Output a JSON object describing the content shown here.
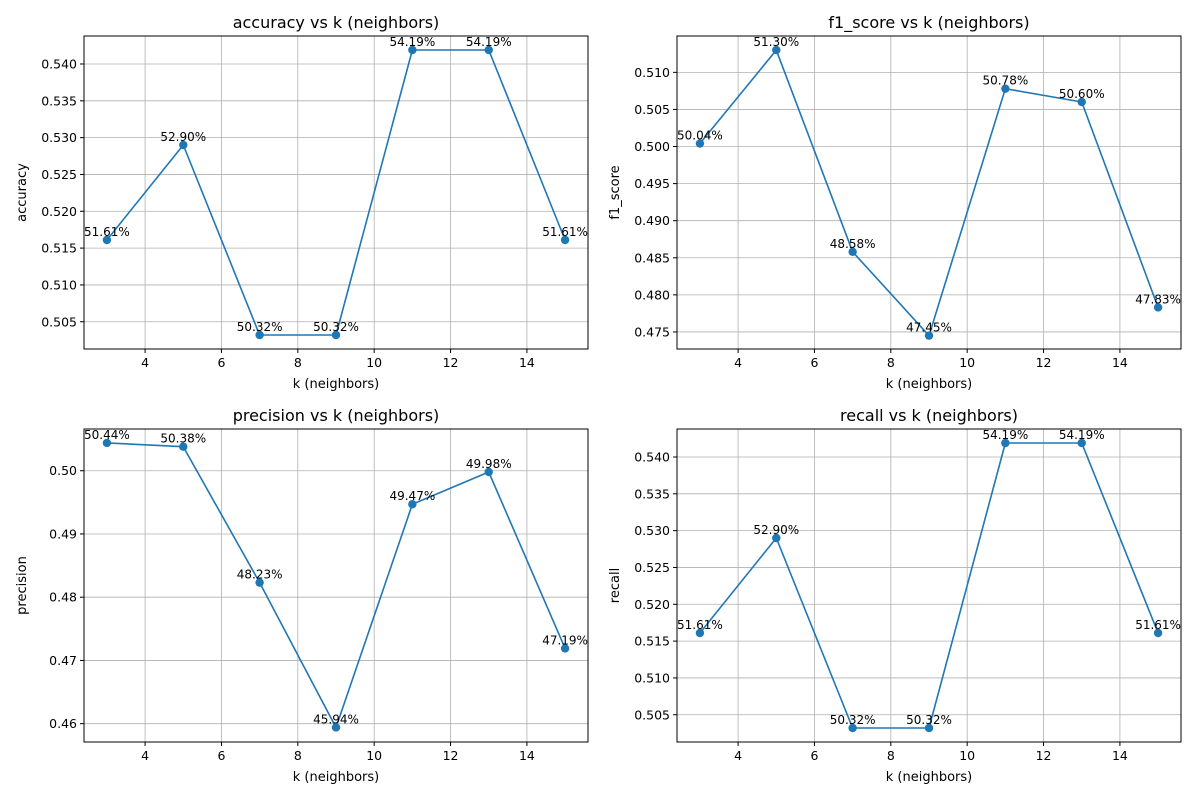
{
  "chart_data": [
    {
      "type": "line",
      "title": "accuracy vs k (neighbors)",
      "xlabel": "k (neighbors)",
      "ylabel": "accuracy",
      "x": [
        3,
        5,
        7,
        9,
        11,
        13,
        15
      ],
      "series": [
        {
          "values": [
            0.5161,
            0.529,
            0.5032,
            0.5032,
            0.5419,
            0.5419,
            0.5161
          ],
          "color": "#1f77b4"
        }
      ],
      "point_labels": [
        "51.61%",
        "52.90%",
        "50.32%",
        "50.32%",
        "54.19%",
        "54.19%",
        "51.61%"
      ],
      "xlim": [
        2.4,
        15.6
      ],
      "ylim": [
        0.5013,
        0.5438
      ],
      "xticks": [
        4,
        6,
        8,
        10,
        12,
        14
      ],
      "xtick_labels": [
        "4",
        "6",
        "8",
        "10",
        "12",
        "14"
      ],
      "yticks": [
        0.505,
        0.51,
        0.515,
        0.52,
        0.525,
        0.53,
        0.535,
        0.54
      ],
      "ytick_labels": [
        "0.505",
        "0.510",
        "0.515",
        "0.520",
        "0.525",
        "0.530",
        "0.535",
        "0.540"
      ],
      "grid": true
    },
    {
      "type": "line",
      "title": "f1_score vs k (neighbors)",
      "xlabel": "k (neighbors)",
      "ylabel": "f1_score",
      "x": [
        3,
        5,
        7,
        9,
        11,
        13,
        15
      ],
      "series": [
        {
          "values": [
            0.5004,
            0.513,
            0.4858,
            0.4745,
            0.5078,
            0.506,
            0.4783
          ],
          "color": "#1f77b4"
        }
      ],
      "point_labels": [
        "50.04%",
        "51.30%",
        "48.58%",
        "47.45%",
        "50.78%",
        "50.60%",
        "47.83%"
      ],
      "xlim": [
        2.4,
        15.6
      ],
      "ylim": [
        0.4727,
        0.5149
      ],
      "xticks": [
        4,
        6,
        8,
        10,
        12,
        14
      ],
      "xtick_labels": [
        "4",
        "6",
        "8",
        "10",
        "12",
        "14"
      ],
      "yticks": [
        0.475,
        0.48,
        0.485,
        0.49,
        0.495,
        0.5,
        0.505,
        0.51
      ],
      "ytick_labels": [
        "0.475",
        "0.480",
        "0.485",
        "0.490",
        "0.495",
        "0.500",
        "0.505",
        "0.510"
      ],
      "grid": true
    },
    {
      "type": "line",
      "title": "precision vs k (neighbors)",
      "xlabel": "k (neighbors)",
      "ylabel": "precision",
      "x": [
        3,
        5,
        7,
        9,
        11,
        13,
        15
      ],
      "series": [
        {
          "values": [
            0.5044,
            0.5038,
            0.4823,
            0.4594,
            0.4947,
            0.4998,
            0.4719
          ],
          "color": "#1f77b4"
        }
      ],
      "point_labels": [
        "50.44%",
        "50.38%",
        "48.23%",
        "45.94%",
        "49.47%",
        "49.98%",
        "47.19%"
      ],
      "xlim": [
        2.4,
        15.6
      ],
      "ylim": [
        0.4571,
        0.5066
      ],
      "xticks": [
        4,
        6,
        8,
        10,
        12,
        14
      ],
      "xtick_labels": [
        "4",
        "6",
        "8",
        "10",
        "12",
        "14"
      ],
      "yticks": [
        0.46,
        0.47,
        0.48,
        0.49,
        0.5
      ],
      "ytick_labels": [
        "0.46",
        "0.47",
        "0.48",
        "0.49",
        "0.50"
      ],
      "grid": true
    },
    {
      "type": "line",
      "title": "recall vs k (neighbors)",
      "xlabel": "k (neighbors)",
      "ylabel": "recall",
      "x": [
        3,
        5,
        7,
        9,
        11,
        13,
        15
      ],
      "series": [
        {
          "values": [
            0.5161,
            0.529,
            0.5032,
            0.5032,
            0.5419,
            0.5419,
            0.5161
          ],
          "color": "#1f77b4"
        }
      ],
      "point_labels": [
        "51.61%",
        "52.90%",
        "50.32%",
        "50.32%",
        "54.19%",
        "54.19%",
        "51.61%"
      ],
      "xlim": [
        2.4,
        15.6
      ],
      "ylim": [
        0.5013,
        0.5438
      ],
      "xticks": [
        4,
        6,
        8,
        10,
        12,
        14
      ],
      "xtick_labels": [
        "4",
        "6",
        "8",
        "10",
        "12",
        "14"
      ],
      "yticks": [
        0.505,
        0.51,
        0.515,
        0.52,
        0.525,
        0.53,
        0.535,
        0.54
      ],
      "ytick_labels": [
        "0.505",
        "0.510",
        "0.515",
        "0.520",
        "0.525",
        "0.530",
        "0.535",
        "0.540"
      ],
      "grid": true
    }
  ]
}
